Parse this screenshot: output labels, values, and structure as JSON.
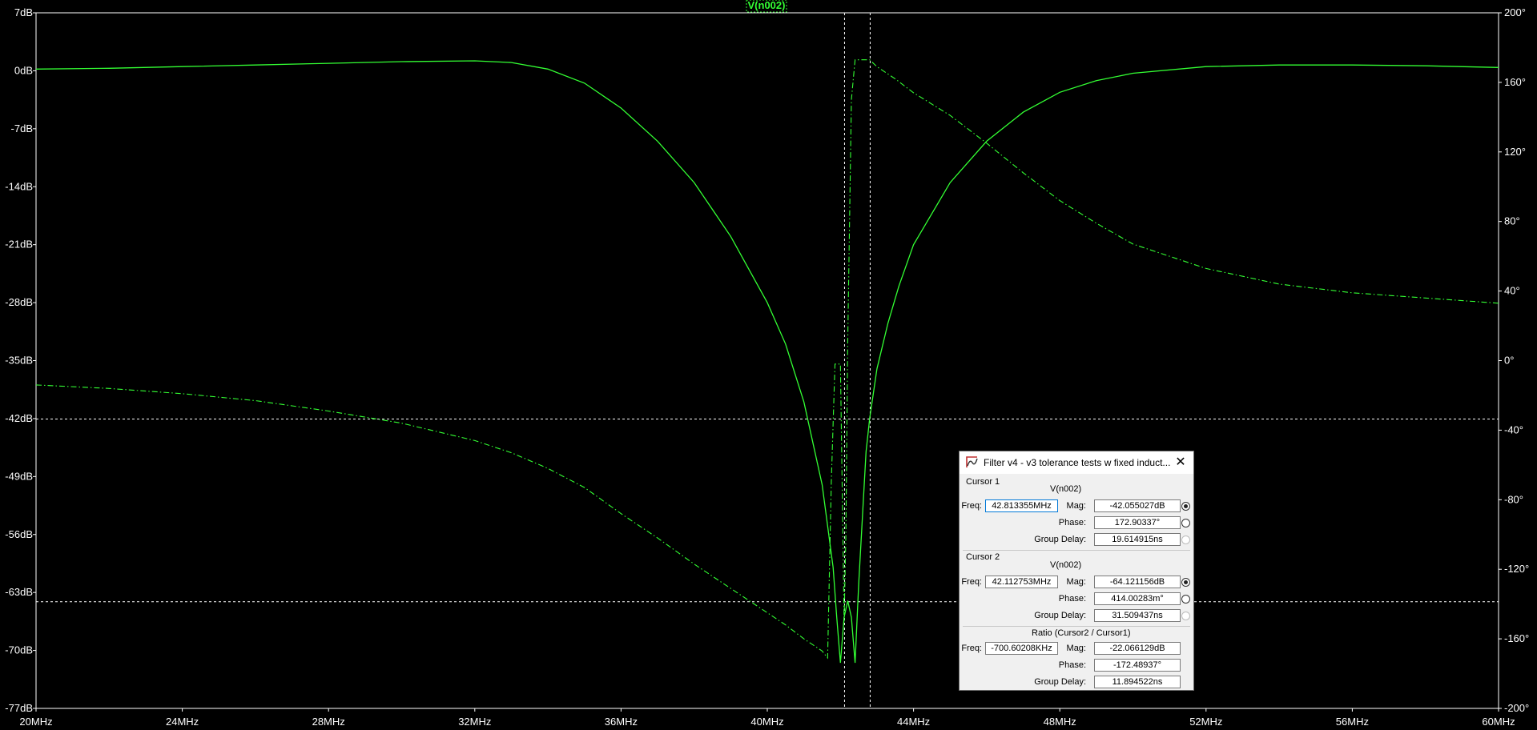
{
  "chart_data": {
    "type": "line",
    "title": "V(n002)",
    "x_axis": {
      "scale": "linear",
      "range_mhz": [
        20,
        60
      ],
      "tick_values_mhz": [
        20,
        24,
        28,
        32,
        36,
        40,
        44,
        48,
        52,
        56,
        60
      ],
      "tick_labels": [
        "20MHz",
        "24MHz",
        "28MHz",
        "32MHz",
        "36MHz",
        "40MHz",
        "44MHz",
        "48MHz",
        "52MHz",
        "56MHz",
        "60MHz"
      ]
    },
    "y_left": {
      "unit": "dB",
      "range": [
        -77,
        7
      ],
      "tick_values": [
        7,
        0,
        -7,
        -14,
        -21,
        -28,
        -35,
        -42,
        -49,
        -56,
        -63,
        -70,
        -77
      ],
      "tick_labels": [
        "7dB",
        "0dB",
        "-7dB",
        "-14dB",
        "-21dB",
        "-28dB",
        "-35dB",
        "-42dB",
        "-49dB",
        "-56dB",
        "-63dB",
        "-70dB",
        "-77dB"
      ]
    },
    "y_right": {
      "unit": "°",
      "range": [
        -200,
        200
      ],
      "tick_values": [
        200,
        160,
        120,
        80,
        40,
        0,
        -40,
        -80,
        -120,
        -160,
        -200
      ],
      "tick_labels": [
        "200°",
        "160°",
        "120°",
        "80°",
        "40°",
        "0°",
        "-40°",
        "-80°",
        "-120°",
        "-160°",
        "-200°"
      ]
    },
    "color": "#33ff33",
    "series": [
      {
        "name": "",
        "style": "solid",
        "axis": "left",
        "x_mhz": [
          20,
          22,
          24,
          26,
          28,
          30,
          32,
          33,
          34,
          35,
          36,
          37,
          38,
          39,
          40,
          40.5,
          41,
          41.5,
          41.8,
          41.9,
          42.0,
          42.1,
          42.2,
          42.3,
          42.4,
          42.5,
          42.7,
          42.8,
          43.0,
          43.3,
          43.6,
          44,
          45,
          46,
          47,
          48,
          49,
          50,
          52,
          54,
          56,
          58,
          60
        ],
        "y_db": [
          0.2,
          0.3,
          0.5,
          0.7,
          0.9,
          1.1,
          1.2,
          1.0,
          0.2,
          -1.5,
          -4.5,
          -8.5,
          -13.5,
          -20,
          -28,
          -33,
          -40,
          -50,
          -60,
          -66,
          -71.5,
          -66,
          -64,
          -66,
          -71.5,
          -62,
          -46,
          -42,
          -36,
          -30.5,
          -26,
          -21,
          -13.5,
          -8.5,
          -5,
          -2.6,
          -1.2,
          -0.3,
          0.5,
          0.7,
          0.7,
          0.6,
          0.4
        ]
      },
      {
        "name": "",
        "style": "dash-dot",
        "axis": "right",
        "x_mhz": [
          20,
          22,
          24,
          26,
          28,
          30,
          32,
          33,
          34,
          35,
          36,
          37,
          38,
          39,
          40,
          40.5,
          41,
          41.5,
          41.65,
          41.75,
          41.85,
          42.0,
          42.1,
          42.15,
          42.2,
          42.3,
          42.4,
          42.8,
          43.0,
          43.5,
          44,
          45,
          46,
          47,
          48,
          49,
          50,
          52,
          54,
          56,
          58,
          60
        ],
        "y_deg": [
          -14,
          -16,
          -19,
          -23,
          -29,
          -36,
          -46,
          -53,
          -62,
          -73,
          -88,
          -102,
          -117,
          -131,
          -145,
          -152,
          -160,
          -167,
          -171,
          -70,
          -2,
          -2,
          -150,
          -100,
          10,
          150,
          173,
          173,
          169,
          162,
          154,
          141,
          125,
          108,
          92,
          79,
          67,
          53,
          44,
          39,
          36,
          33
        ]
      }
    ],
    "cursor_lines": {
      "cursor1": {
        "freq_mhz": 42.813355,
        "mag_db": -42.055027
      },
      "cursor2": {
        "freq_mhz": 42.112753,
        "mag_db": -64.121156
      }
    },
    "grid": false
  },
  "dialog": {
    "title": "Filter v4 - v3 tolerance tests w fixed induct...",
    "cursor1": {
      "heading": "Cursor 1",
      "trace": "V(n002)",
      "freq_label": "Freq:",
      "freq": "42.813355MHz",
      "mag_label": "Mag:",
      "mag": "-42.055027dB",
      "phase_label": "Phase:",
      "phase": "172.90337°",
      "gd_label": "Group Delay:",
      "gd": "19.614915ns"
    },
    "cursor2": {
      "heading": "Cursor 2",
      "trace": "V(n002)",
      "freq_label": "Freq:",
      "freq": "42.112753MHz",
      "mag_label": "Mag:",
      "mag": "-64.121156dB",
      "phase_label": "Phase:",
      "phase": "414.00283m°",
      "gd_label": "Group Delay:",
      "gd": "31.509437ns"
    },
    "ratio": {
      "heading": "Ratio (Cursor2 / Cursor1)",
      "freq_label": "Freq:",
      "freq": "-700.60208KHz",
      "mag_label": "Mag:",
      "mag": "-22.066129dB",
      "phase_label": "Phase:",
      "phase": "-172.48937°",
      "gd_label": "Group Delay:",
      "gd": "11.894522ns"
    },
    "icons": {
      "app": "ltspice-app-icon",
      "close": "close-icon"
    }
  }
}
